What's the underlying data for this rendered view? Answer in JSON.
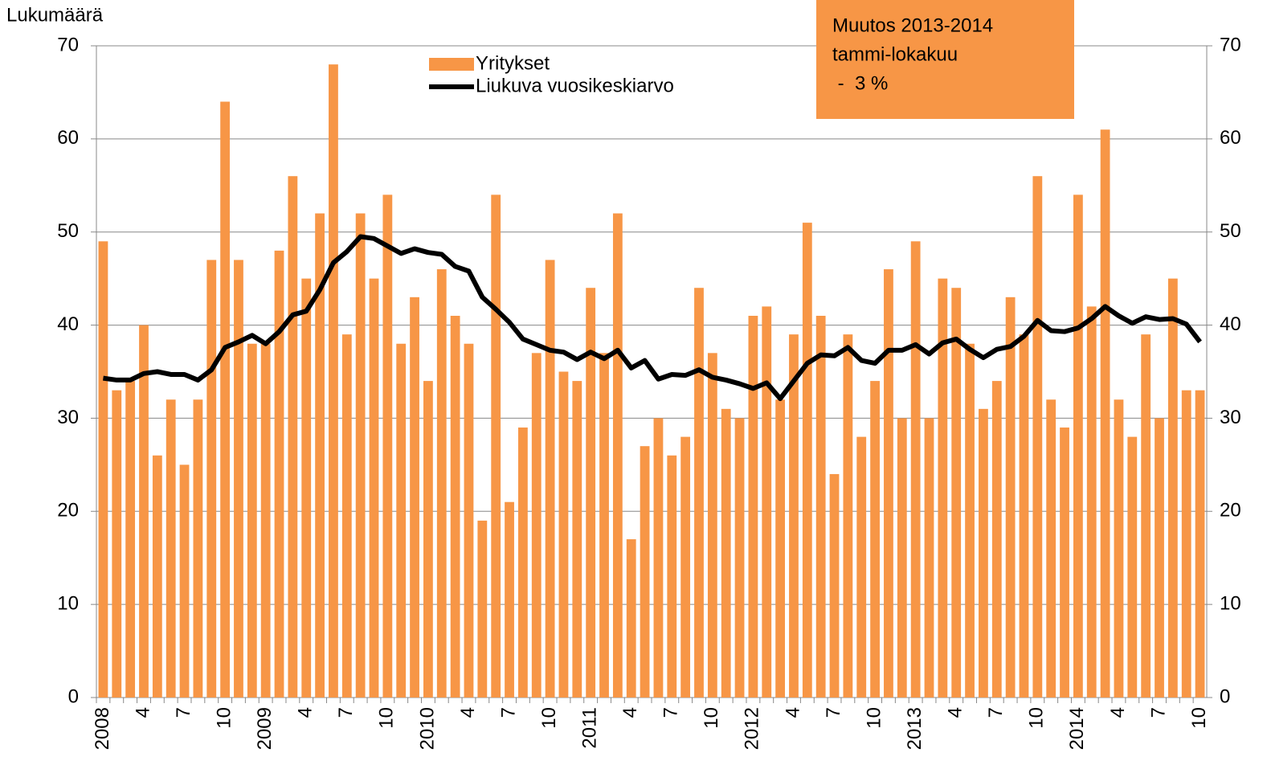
{
  "chart_data": {
    "type": "bar",
    "y_label": "Lukumäärä",
    "annotation": [
      "Muutos 2013-2014",
      "tammi-lokakuu",
      " -  3 %"
    ],
    "annotation_color": "#f79646",
    "categories": [
      "2008",
      null,
      null,
      "4",
      null,
      null,
      "7",
      null,
      null,
      "10",
      null,
      null,
      "2009",
      null,
      null,
      "4",
      null,
      null,
      "7",
      null,
      null,
      "10",
      null,
      null,
      "2010",
      null,
      null,
      "4",
      null,
      null,
      "7",
      null,
      null,
      "10",
      null,
      null,
      "2011",
      null,
      null,
      "4",
      null,
      null,
      "7",
      null,
      null,
      "10",
      null,
      null,
      "2012",
      null,
      null,
      "4",
      null,
      null,
      "7",
      null,
      null,
      "10",
      null,
      null,
      "2013",
      null,
      null,
      "4",
      null,
      null,
      "7",
      null,
      null,
      "10",
      null,
      null,
      "2014",
      null,
      null,
      "4",
      null,
      null,
      "7",
      null,
      null,
      "10"
    ],
    "series": [
      {
        "name": "Yritykset",
        "type": "bar",
        "color": "#f79646",
        "values": [
          49,
          33,
          34,
          40,
          26,
          32,
          25,
          32,
          47,
          64,
          47,
          38,
          38,
          48,
          56,
          45,
          52,
          68,
          39,
          52,
          45,
          54,
          38,
          43,
          34,
          46,
          41,
          38,
          19,
          54,
          21,
          29,
          37,
          47,
          35,
          34,
          44,
          37,
          52,
          17,
          27,
          30,
          26,
          28,
          44,
          37,
          31,
          30,
          41,
          42,
          32,
          39,
          51,
          41,
          24,
          39,
          28,
          34,
          46,
          30,
          49,
          30,
          45,
          44,
          38,
          31,
          34,
          43,
          39,
          56,
          32,
          29,
          54,
          42,
          61,
          32,
          28,
          39,
          30,
          45,
          33,
          33
        ]
      },
      {
        "name": "Liukuva vuosikeskiarvo",
        "type": "line",
        "color": "#000000",
        "values": [
          34.3,
          34.1,
          34.1,
          34.8,
          35,
          34.7,
          34.7,
          34.1,
          35.2,
          37.6,
          38.2,
          38.9,
          38,
          39.3,
          41.1,
          41.5,
          43.8,
          46.7,
          47.9,
          49.5,
          49.3,
          48.5,
          47.7,
          48.2,
          47.8,
          47.6,
          46.3,
          45.8,
          43,
          41.7,
          40.3,
          38.5,
          37.9,
          37.3,
          37.1,
          36.3,
          37.1,
          36.4,
          37.3,
          35.4,
          36.2,
          34.2,
          34.7,
          34.6,
          35.2,
          34.4,
          34.1,
          33.7,
          33.2,
          33.8,
          32.1,
          34,
          35.9,
          36.8,
          36.7,
          37.6,
          36.2,
          35.9,
          37.3,
          37.3,
          37.9,
          36.9,
          38.1,
          38.5,
          37.4,
          36.5,
          37.4,
          37.7,
          38.8,
          40.5,
          39.4,
          39.3,
          39.7,
          40.7,
          42,
          41,
          40.2,
          40.9,
          40.6,
          40.7,
          40.1,
          38.2
        ]
      }
    ],
    "ylim": [
      0,
      70
    ],
    "yticks": [
      0,
      10,
      20,
      30,
      40,
      50,
      60,
      70
    ],
    "grid": true
  }
}
